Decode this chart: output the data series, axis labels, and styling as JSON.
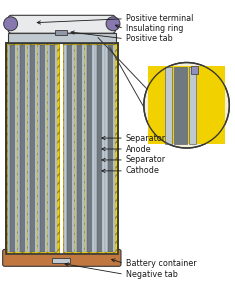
{
  "bg_color": "#ffffff",
  "yellow": "#f2d100",
  "yellow_dark": "#c8aa00",
  "gray_light": "#c0c8d0",
  "gray_mid": "#9098a8",
  "gray_dark": "#707880",
  "copper": "#c07840",
  "outline": "#383838",
  "purple": "#8878b0",
  "white_cap": "#e8eaec",
  "inset_bg": "#f0e8c0",
  "figsize": [
    2.35,
    3.0
  ],
  "dpi": 100,
  "labels": {
    "positive_terminal": "Positive terminal",
    "insulating_ring": "Insulating ring",
    "positive_tab": "Positive tab",
    "separator": "Separator",
    "anode": "Anode",
    "separator2": "Separator",
    "cathode": "Cathode",
    "battery_container": "Battery container",
    "negative_tab": "Negative tab"
  }
}
